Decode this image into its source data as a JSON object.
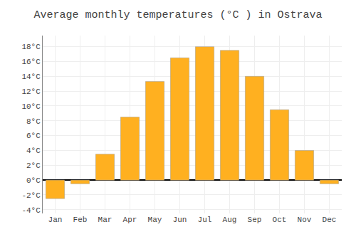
{
  "chart_data": {
    "type": "bar",
    "title": "Average monthly temperatures (°C ) in Ostrava",
    "categories": [
      "Jan",
      "Feb",
      "Mar",
      "Apr",
      "May",
      "Jun",
      "Jul",
      "Aug",
      "Sep",
      "Oct",
      "Nov",
      "Dec"
    ],
    "values": [
      -2.5,
      -0.5,
      3.5,
      8.5,
      13.3,
      16.5,
      18.0,
      17.5,
      14.0,
      9.5,
      4.0,
      -0.5
    ],
    "color": "#FFB020",
    "ylim": [
      -4.5,
      19.5
    ],
    "yticks": [
      {
        "value": -4,
        "label": "-4°C"
      },
      {
        "value": -2,
        "label": "-2°C"
      },
      {
        "value": 0,
        "label": "0°C"
      },
      {
        "value": 2,
        "label": "2°C"
      },
      {
        "value": 4,
        "label": "4°C"
      },
      {
        "value": 6,
        "label": "6°C"
      },
      {
        "value": 8,
        "label": "8°C"
      },
      {
        "value": 10,
        "label": "10°C"
      },
      {
        "value": 12,
        "label": "12°C"
      },
      {
        "value": 14,
        "label": "14°C"
      },
      {
        "value": 16,
        "label": "16°C"
      },
      {
        "value": 18,
        "label": "18°C"
      }
    ],
    "grid": true
  }
}
